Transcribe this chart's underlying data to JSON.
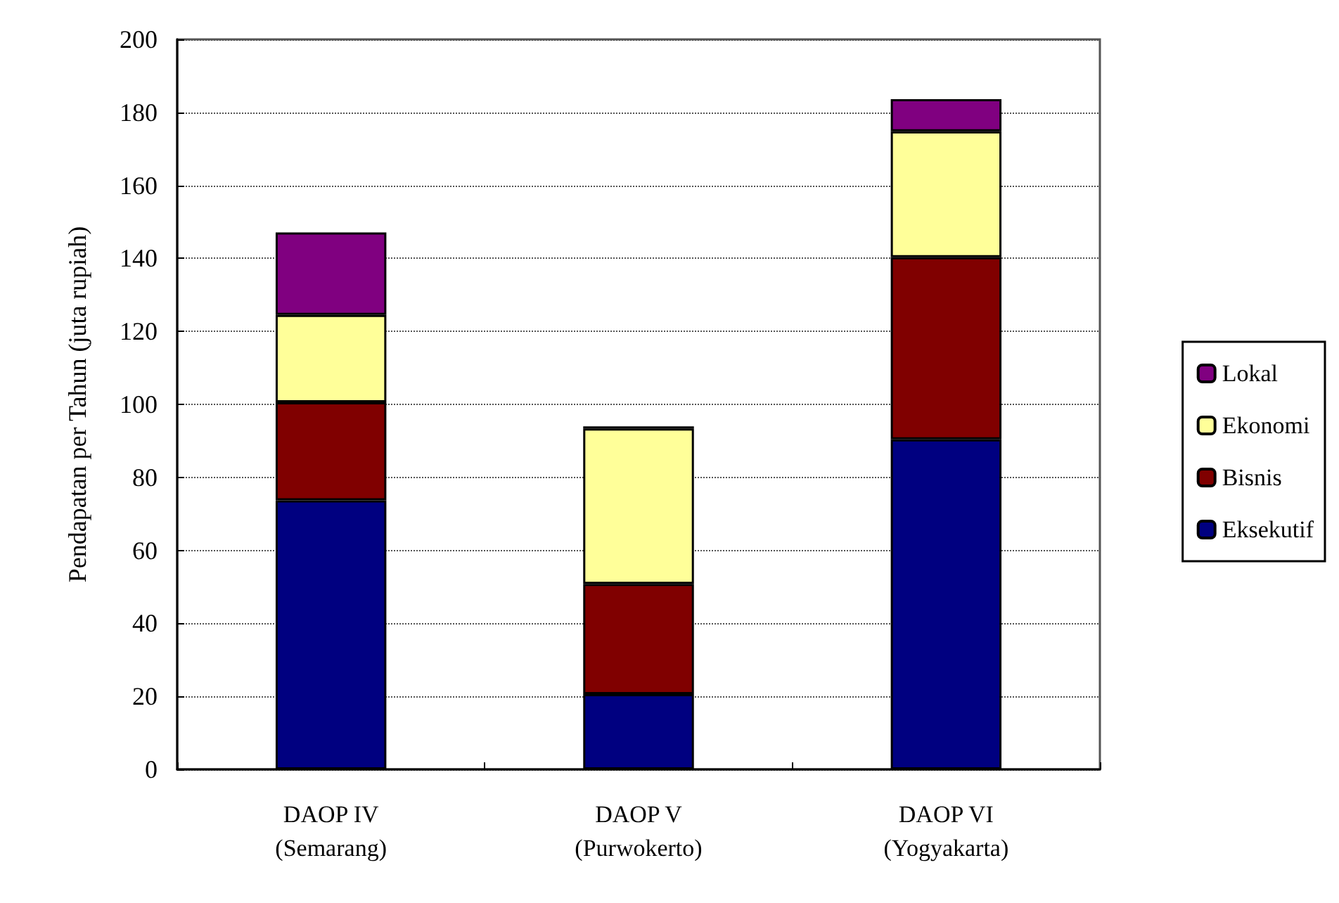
{
  "chart_data": {
    "type": "bar",
    "stacked": true,
    "ylabel": "Pendapatan per Tahun (juta rupiah)",
    "categories": [
      "DAOP IV\n(Semarang)",
      "DAOP V\n(Purwokerto)",
      "DAOP VI\n(Yogyakarta)"
    ],
    "series": [
      {
        "name": "Eksekutif",
        "color": "#000080",
        "values": [
          73.7,
          20.6,
          90.4
        ]
      },
      {
        "name": "Bisnis",
        "color": "#800000",
        "values": [
          26.9,
          30.2,
          49.9
        ]
      },
      {
        "name": "Ekonomi",
        "color": "#ffff99",
        "values": [
          23.9,
          42.6,
          34.5
        ]
      },
      {
        "name": "Lokal",
        "color": "#800080",
        "values": [
          22.6,
          0.6,
          8.8
        ]
      }
    ],
    "ylim": [
      0,
      200
    ],
    "yticks": [
      0,
      20,
      40,
      60,
      80,
      100,
      120,
      140,
      160,
      180,
      200
    ],
    "grid": "y",
    "legend": "right"
  }
}
